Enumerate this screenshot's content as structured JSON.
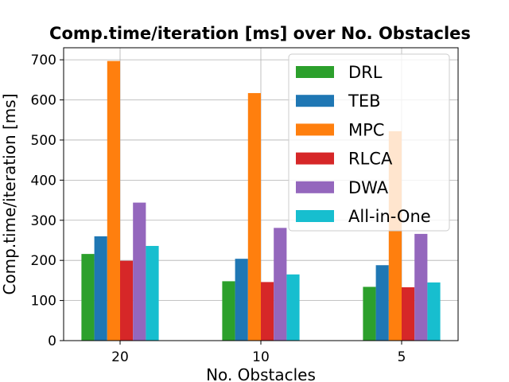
{
  "chart_data": {
    "type": "bar",
    "title": "Comp.time/iteration [ms] over No. Obstacles",
    "xlabel": "No. Obstacles",
    "ylabel": "Comp.time/iteration [ms]",
    "categories": [
      "20",
      "10",
      "5"
    ],
    "ylim": [
      0,
      730
    ],
    "yticks": [
      0,
      100,
      200,
      300,
      400,
      500,
      600,
      700
    ],
    "grid": true,
    "legend_position": "top-right",
    "series": [
      {
        "name": "DRL",
        "color": "#2ca02c",
        "values": [
          216,
          148,
          134
        ]
      },
      {
        "name": "TEB",
        "color": "#1f77b4",
        "values": [
          260,
          204,
          188
        ]
      },
      {
        "name": "MPC",
        "color": "#ff7f0e",
        "values": [
          697,
          617,
          522
        ]
      },
      {
        "name": "RLCA",
        "color": "#d62728",
        "values": [
          199,
          146,
          133
        ]
      },
      {
        "name": "DWA",
        "color": "#9467bd",
        "values": [
          344,
          281,
          266
        ]
      },
      {
        "name": "All-in-One",
        "color": "#17becf",
        "values": [
          236,
          165,
          145
        ]
      }
    ]
  }
}
